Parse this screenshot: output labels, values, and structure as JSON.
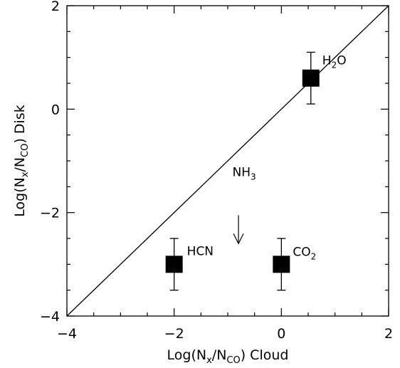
{
  "chart_data": {
    "type": "scatter",
    "title": "",
    "xlim": [
      -4,
      2
    ],
    "ylim": [
      -4,
      2
    ],
    "x_ticks": [
      "−4",
      "−2",
      "0",
      "2"
    ],
    "y_ticks": [
      "−4",
      "−2",
      "0",
      "2"
    ],
    "xlabel": {
      "pre": "Log(N",
      "sub1": "x",
      "mid": "/N",
      "sub2": "CO",
      "post": ") Cloud"
    },
    "ylabel": {
      "pre": "Log(N",
      "sub1": "x",
      "mid": "/N",
      "sub2": "CO",
      "post": ") Disk"
    },
    "reference_line": {
      "from": [
        -4,
        -4
      ],
      "to": [
        2,
        2
      ]
    },
    "points": [
      {
        "name": {
          "pre": "H",
          "sub": "2",
          "post": "O"
        },
        "x": 0.55,
        "y": 0.6,
        "yerr": 0.5,
        "marker": "square"
      },
      {
        "name": {
          "pre": "HCN",
          "sub": "",
          "post": ""
        },
        "x": -2.0,
        "y": -3.0,
        "yerr": 0.5,
        "marker": "square"
      },
      {
        "name": {
          "pre": "CO",
          "sub": "2",
          "post": ""
        },
        "x": 0.0,
        "y": -3.0,
        "yerr": 0.5,
        "marker": "square"
      },
      {
        "name": {
          "pre": "NH",
          "sub": "3",
          "post": ""
        },
        "x": -0.8,
        "y": -2.6,
        "marker": "upper-limit-arrow"
      }
    ]
  }
}
